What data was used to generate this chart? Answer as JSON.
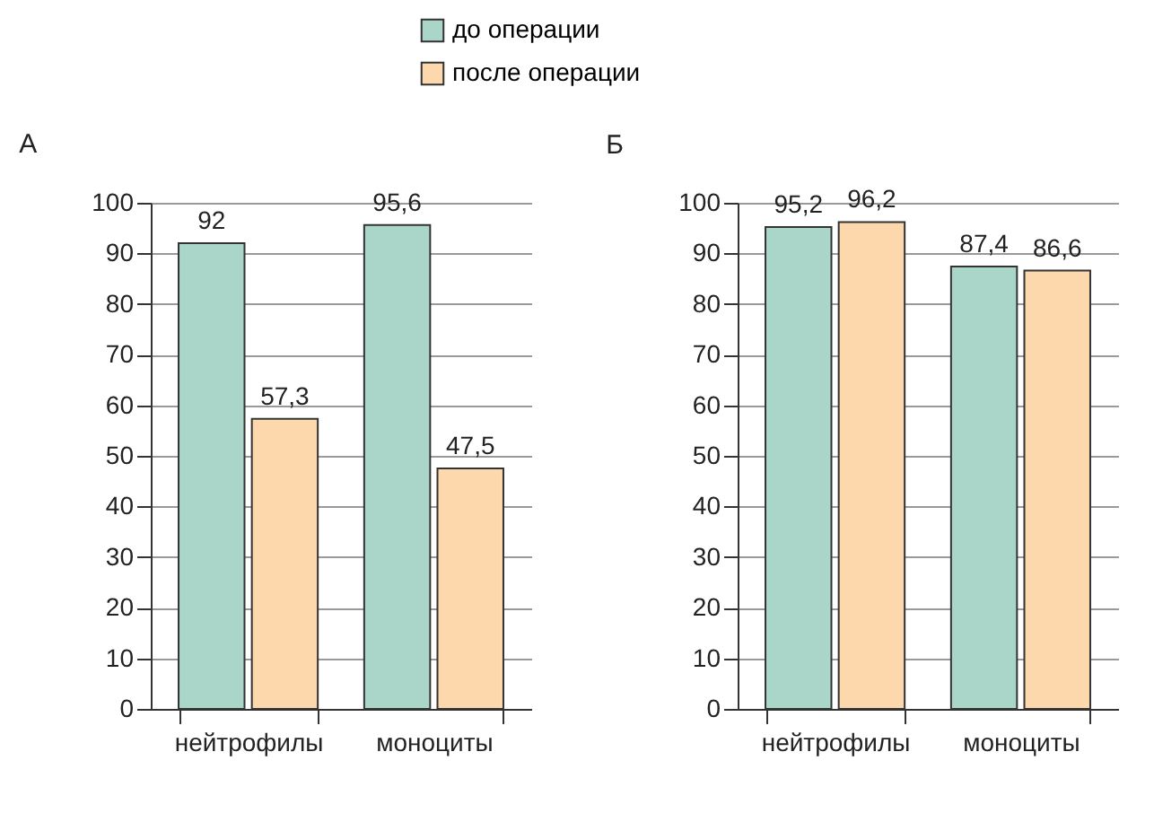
{
  "chart_data": [
    {
      "type": "bar",
      "title": "А",
      "categories": [
        "нейтрофилы",
        "моноциты"
      ],
      "series": [
        {
          "name": "до операции",
          "color": "#a9d6c8",
          "values": [
            92,
            95.6
          ],
          "value_labels": [
            "92",
            "95,6"
          ]
        },
        {
          "name": "после операции",
          "color": "#fdd8ad",
          "values": [
            57.3,
            47.5
          ],
          "value_labels": [
            "57,3",
            "47,5"
          ]
        }
      ],
      "ylim": [
        0,
        100
      ],
      "yticks": [
        0,
        10,
        20,
        30,
        40,
        50,
        60,
        70,
        80,
        90,
        100
      ],
      "grid": "y",
      "legend": "top"
    },
    {
      "type": "bar",
      "title": "Б",
      "categories": [
        "нейтрофилы",
        "моноциты"
      ],
      "series": [
        {
          "color": "#a9d6c8",
          "values": [
            95.2,
            87.4
          ],
          "value_labels": [
            "95,2",
            "87,4"
          ]
        },
        {
          "color": "#fdd8ad",
          "values": [
            96.2,
            86.6
          ],
          "value_labels": [
            "96,2",
            "86,6"
          ]
        }
      ],
      "ylim": [
        0,
        100
      ],
      "yticks": [
        0,
        10,
        20,
        30,
        40,
        50,
        60,
        70,
        80,
        90,
        100
      ],
      "grid": "y"
    }
  ]
}
